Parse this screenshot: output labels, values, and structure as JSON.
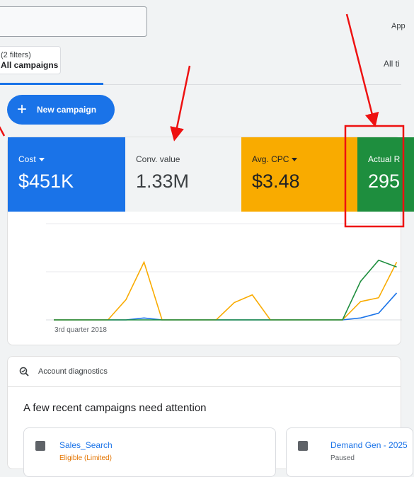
{
  "top_right_text": "App",
  "filters": {
    "count_label": "(2 filters)",
    "campaign_scope": "All campaigns"
  },
  "date_range_partial": "All ti",
  "new_campaign_label": "New campaign",
  "metrics": [
    {
      "label": "Cost",
      "value": "$451K",
      "dropdown": true,
      "color": "#1a73e8"
    },
    {
      "label": "Conv. value",
      "value": "1.33M",
      "dropdown": false,
      "color": "#f1f3f4"
    },
    {
      "label": "Avg. CPC",
      "value": "$3.48",
      "dropdown": true,
      "color": "#f9ab00"
    },
    {
      "label": "Actual R",
      "value": "295",
      "dropdown": false,
      "color": "#1e8e3e"
    }
  ],
  "chart_data": {
    "type": "line",
    "xlabel": "3rd quarter 2018",
    "series": [
      {
        "color": "#1a73e8",
        "values": [
          0,
          0,
          0,
          0,
          0,
          0.02,
          0,
          0,
          0,
          0,
          0,
          0,
          0,
          0,
          0,
          0,
          0,
          0.02,
          0.07,
          0.28
        ]
      },
      {
        "color": "#f9ab00",
        "values": [
          0,
          0,
          0,
          0,
          0.21,
          0.6,
          0,
          0,
          0,
          0,
          0.18,
          0.26,
          0,
          0,
          0,
          0,
          0,
          0.19,
          0.23,
          0.6
        ]
      },
      {
        "color": "#1e8e3e",
        "values": [
          0,
          0,
          0,
          0,
          0,
          0,
          0,
          0,
          0,
          0,
          0,
          0,
          0,
          0,
          0,
          0,
          0,
          0.4,
          0.62,
          0.55
        ]
      }
    ]
  },
  "diagnostics": {
    "header": "Account diagnostics",
    "title": "A few recent campaigns need attention",
    "campaigns": [
      {
        "name": "Sales_Search",
        "status": "Eligible (Limited)"
      },
      {
        "name": "Demand Gen - 2025",
        "status": "Paused"
      }
    ]
  },
  "colors": {
    "accent": "#1a73e8",
    "annotation_red": "#ee1111"
  }
}
